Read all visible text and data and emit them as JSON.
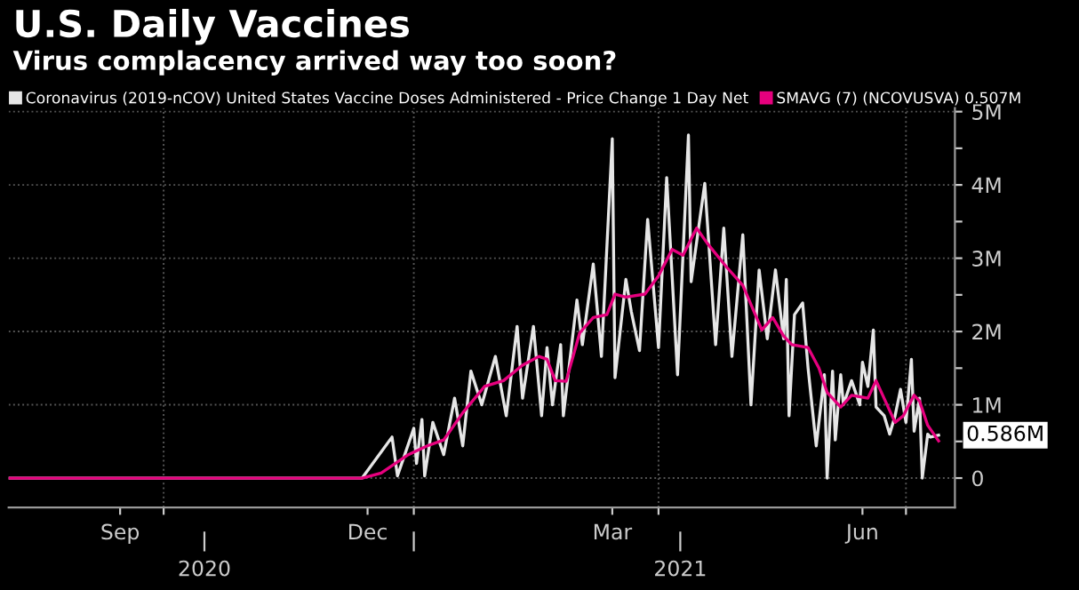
{
  "chart_data": {
    "type": "line",
    "title": "U.S. Daily Vaccines",
    "subtitle": "Virus complacency arrived way too soon?",
    "series": [
      {
        "name": "Coronavirus (2019-nCOV) United States Vaccine Doses Administered - Price Change 1 Day Net",
        "color": "#e6e6e6",
        "x": [
          "2020-08-05",
          "2020-12-13",
          "2020-12-24",
          "2020-12-26",
          "2021-01-01",
          "2021-01-02",
          "2021-01-04",
          "2021-01-05",
          "2021-01-08",
          "2021-01-12",
          "2021-01-16",
          "2021-01-19",
          "2021-01-22",
          "2021-01-26",
          "2021-01-31",
          "2021-02-04",
          "2021-02-08",
          "2021-02-10",
          "2021-02-14",
          "2021-02-17",
          "2021-02-19",
          "2021-02-21",
          "2021-02-24",
          "2021-02-25",
          "2021-03-02",
          "2021-03-04",
          "2021-03-08",
          "2021-03-11",
          "2021-03-15",
          "2021-03-16",
          "2021-03-20",
          "2021-03-22",
          "2021-03-25",
          "2021-03-28",
          "2021-04-01",
          "2021-04-04",
          "2021-04-08",
          "2021-04-12",
          "2021-04-13",
          "2021-04-18",
          "2021-04-22",
          "2021-04-25",
          "2021-04-28",
          "2021-05-02",
          "2021-05-05",
          "2021-05-08",
          "2021-05-11",
          "2021-05-14",
          "2021-05-17",
          "2021-05-18",
          "2021-05-19",
          "2021-05-21",
          "2021-05-24",
          "2021-05-26",
          "2021-05-29",
          "2021-06-01",
          "2021-06-02",
          "2021-06-04",
          "2021-06-05",
          "2021-06-07",
          "2021-06-08",
          "2021-06-11",
          "2021-06-14",
          "2021-06-15",
          "2021-06-17",
          "2021-06-19",
          "2021-06-20",
          "2021-06-23",
          "2021-06-25",
          "2021-06-27",
          "2021-06-29",
          "2021-07-01",
          "2021-07-03",
          "2021-07-04",
          "2021-07-06",
          "2021-07-07",
          "2021-07-09",
          "2021-07-10",
          "2021-07-13"
        ],
        "values": [
          0,
          0,
          0.56,
          0.03,
          0.68,
          0.2,
          0.8,
          0.03,
          0.76,
          0.32,
          1.09,
          0.44,
          1.46,
          1.0,
          1.66,
          0.85,
          2.07,
          1.09,
          2.07,
          0.85,
          1.78,
          1.0,
          1.82,
          0.85,
          2.43,
          1.82,
          2.92,
          1.66,
          4.63,
          1.37,
          2.71,
          2.27,
          1.74,
          3.53,
          1.78,
          4.1,
          1.41,
          4.68,
          2.68,
          4.02,
          1.82,
          3.41,
          1.66,
          3.32,
          1.0,
          2.84,
          1.9,
          2.84,
          1.9,
          2.71,
          0.85,
          2.23,
          2.39,
          1.5,
          0.44,
          1.41,
          0,
          1.46,
          0.52,
          1.41,
          1.0,
          1.33,
          1.0,
          1.58,
          1.25,
          2.02,
          0.97,
          0.85,
          0.6,
          0.85,
          1.21,
          0.76,
          1.62,
          0.64,
          1.09,
          0,
          0.6,
          0.56,
          0.586
        ]
      },
      {
        "name": "SMAVG (7) (NCOVUSVA) 0.507M",
        "color": "#e6007e",
        "x": [
          "2020-08-05",
          "2020-12-13",
          "2020-12-20",
          "2020-12-30",
          "2021-01-06",
          "2021-01-12",
          "2021-01-19",
          "2021-01-27",
          "2021-02-03",
          "2021-02-10",
          "2021-02-16",
          "2021-02-19",
          "2021-02-22",
          "2021-02-26",
          "2021-03-03",
          "2021-03-08",
          "2021-03-13",
          "2021-03-16",
          "2021-03-20",
          "2021-03-27",
          "2021-04-01",
          "2021-04-06",
          "2021-04-10",
          "2021-04-15",
          "2021-04-19",
          "2021-04-26",
          "2021-05-02",
          "2021-05-09",
          "2021-05-13",
          "2021-05-17",
          "2021-05-20",
          "2021-05-26",
          "2021-05-30",
          "2021-06-02",
          "2021-06-07",
          "2021-06-11",
          "2021-06-17",
          "2021-06-20",
          "2021-06-27",
          "2021-06-30",
          "2021-07-04",
          "2021-07-06",
          "2021-07-09",
          "2021-07-13"
        ],
        "values": [
          0,
          0,
          0.07,
          0.32,
          0.44,
          0.52,
          0.89,
          1.25,
          1.33,
          1.54,
          1.66,
          1.62,
          1.33,
          1.32,
          1.98,
          2.19,
          2.23,
          2.51,
          2.47,
          2.51,
          2.76,
          3.12,
          3.04,
          3.41,
          3.2,
          2.88,
          2.63,
          2.02,
          2.19,
          1.94,
          1.82,
          1.78,
          1.5,
          1.17,
          0.97,
          1.13,
          1.09,
          1.33,
          0.76,
          0.85,
          1.13,
          1.05,
          0.72,
          0.507
        ]
      }
    ],
    "xlim": [
      "2020-08-05",
      "2021-07-19"
    ],
    "xticks": [
      {
        "value": "2020-09-15",
        "label": "Sep"
      },
      {
        "value": "2020-10-01",
        "label": null
      },
      {
        "value": "2020-12-15",
        "label": "Dec"
      },
      {
        "value": "2021-01-01",
        "label": null
      },
      {
        "value": "2021-03-15",
        "label": "Mar"
      },
      {
        "value": "2021-04-01",
        "label": null
      },
      {
        "value": "2021-06-15",
        "label": "Jun"
      },
      {
        "value": "2021-07-01",
        "label": null
      }
    ],
    "x2lim": [
      "2020-08-05",
      "2021-07-19"
    ],
    "x2ticks": [
      {
        "value": "2020-10-16",
        "label": "2020"
      },
      {
        "value": "2021-01-01",
        "label": null
      },
      {
        "value": "2021-04-09",
        "label": "2021"
      }
    ],
    "ylim": [
      -0.4,
      5.05
    ],
    "yticks": [
      {
        "value": 0,
        "label": "0"
      },
      {
        "value": 0.5,
        "label": null
      },
      {
        "value": 1,
        "label": "1M"
      },
      {
        "value": 1.5,
        "label": null
      },
      {
        "value": 2,
        "label": "2M"
      },
      {
        "value": 2.5,
        "label": null
      },
      {
        "value": 3,
        "label": "3M"
      },
      {
        "value": 3.5,
        "label": null
      },
      {
        "value": 4,
        "label": "4M"
      },
      {
        "value": 4.5,
        "label": null
      },
      {
        "value": 5,
        "label": "5M"
      }
    ],
    "annotations": [
      {
        "text": "0.586M",
        "x": "2021-07-13",
        "y": 0.586
      }
    ],
    "grid": true,
    "legend": "top left",
    "line_style": "solid",
    "marker": "none"
  }
}
